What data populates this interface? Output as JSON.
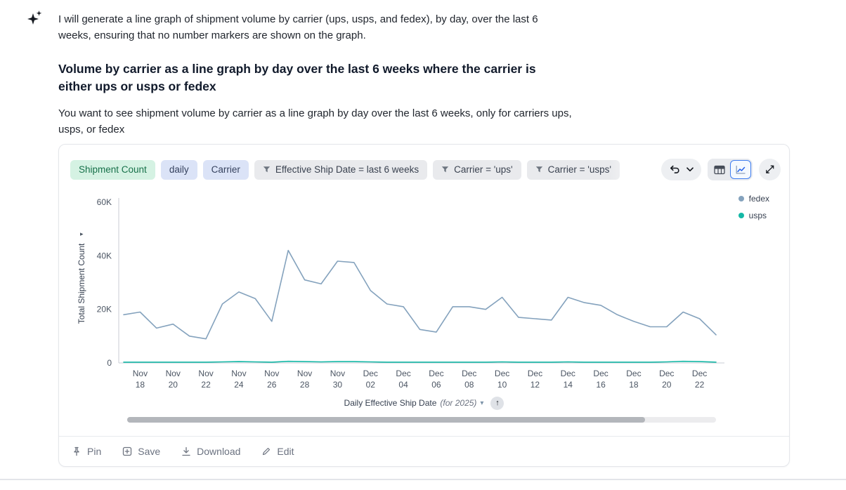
{
  "assistant": {
    "message": "I will generate a line graph of shipment volume by carrier (ups, usps, and fedex), by day, over the last 6 weeks, ensuring that no number markers are shown on the graph.",
    "heading": "Volume by carrier as a line graph by day over the last 6 weeks where the carrier is either ups or usps or fedex",
    "description": "You want to see shipment volume by carrier as a line graph by day over the last 6 weeks, only for carriers ups, usps, or fedex"
  },
  "card": {
    "chips": [
      {
        "label": "Shipment Count",
        "type": "measure"
      },
      {
        "label": "daily",
        "type": "dimension"
      },
      {
        "label": "Carrier",
        "type": "dimension"
      },
      {
        "label": "Effective Ship Date = last 6 weeks",
        "type": "filter"
      },
      {
        "label": "Carrier = 'ups'",
        "type": "filter"
      },
      {
        "label": "Carrier = 'usps'",
        "type": "filter"
      }
    ],
    "axis_control": {
      "label": "Daily Effective Ship Date",
      "suffix": "(for 2025)"
    },
    "footer": [
      {
        "label": "Pin"
      },
      {
        "label": "Save"
      },
      {
        "label": "Download"
      },
      {
        "label": "Edit"
      }
    ]
  },
  "icons": {
    "expand": "⤢",
    "up_arrow": "↑",
    "caret_down": "▾",
    "axis_caret": "▸"
  },
  "chart_data": {
    "type": "line",
    "title": "",
    "ylabel": "Total Shipment Count",
    "xlabel": "Daily Effective Ship Date (for 2025)",
    "ylim": [
      0,
      60000
    ],
    "grid": false,
    "legend_position": "top-right",
    "y_ticks": [
      {
        "label": "0",
        "value": 0
      },
      {
        "label": "20K",
        "value": 20000
      },
      {
        "label": "40K",
        "value": 40000
      },
      {
        "label": "60K",
        "value": 60000
      }
    ],
    "x_ticks": [
      {
        "month": "Nov",
        "day": "18"
      },
      {
        "month": "Nov",
        "day": "20"
      },
      {
        "month": "Nov",
        "day": "22"
      },
      {
        "month": "Nov",
        "day": "24"
      },
      {
        "month": "Nov",
        "day": "26"
      },
      {
        "month": "Nov",
        "day": "28"
      },
      {
        "month": "Nov",
        "day": "30"
      },
      {
        "month": "Dec",
        "day": "02"
      },
      {
        "month": "Dec",
        "day": "04"
      },
      {
        "month": "Dec",
        "day": "06"
      },
      {
        "month": "Dec",
        "day": "08"
      },
      {
        "month": "Dec",
        "day": "10"
      },
      {
        "month": "Dec",
        "day": "12"
      },
      {
        "month": "Dec",
        "day": "14"
      },
      {
        "month": "Dec",
        "day": "16"
      },
      {
        "month": "Dec",
        "day": "18"
      },
      {
        "month": "Dec",
        "day": "20"
      },
      {
        "month": "Dec",
        "day": "22"
      }
    ],
    "series": [
      {
        "name": "fedex",
        "color": "#84a2bd",
        "values": [
          18000,
          19000,
          13000,
          14500,
          10000,
          9000,
          22000,
          26500,
          24000,
          15500,
          42000,
          31000,
          29500,
          38000,
          37500,
          27000,
          22000,
          21000,
          12500,
          11500,
          21000,
          21000,
          20000,
          24500,
          17000,
          16500,
          16000,
          24500,
          22500,
          21500,
          18000,
          15500,
          13500,
          13500,
          19000,
          16500,
          10500
        ]
      },
      {
        "name": "usps",
        "color": "#14b8a6",
        "values": [
          300,
          300,
          300,
          300,
          300,
          300,
          400,
          500,
          400,
          300,
          600,
          500,
          400,
          500,
          500,
          400,
          300,
          300,
          300,
          300,
          300,
          300,
          300,
          400,
          300,
          300,
          300,
          400,
          300,
          300,
          300,
          300,
          300,
          400,
          600,
          500,
          300
        ]
      }
    ]
  }
}
